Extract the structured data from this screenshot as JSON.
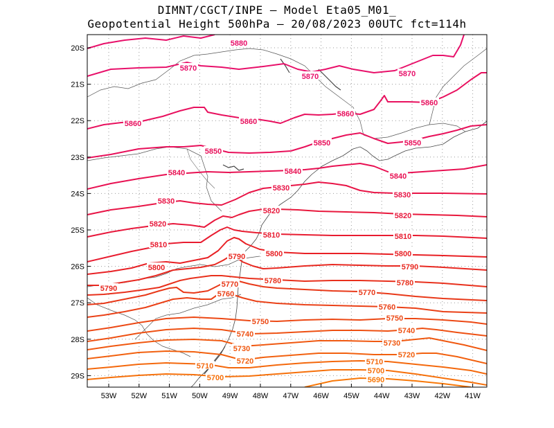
{
  "header": {
    "line1": "DIMNT/CGCT/INPE –  Model Eta05_M01_",
    "line2": "Geopotential Height 500hPa –  20/08/2023 00UTC fct=114h"
  },
  "axes": {
    "lat_labels": [
      "20S",
      "21S",
      "22S",
      "23S",
      "24S",
      "25S",
      "26S",
      "27S",
      "28S",
      "29S"
    ],
    "lon_labels": [
      "53W",
      "52W",
      "51W",
      "50W",
      "49W",
      "48W",
      "47W",
      "46W",
      "45W",
      "44W",
      "43W",
      "42W",
      "41W"
    ]
  },
  "contours": [
    {
      "value": 5880,
      "color": "#e8106a",
      "labels": [
        "5880"
      ]
    },
    {
      "value": 5870,
      "color": "#e8106a",
      "labels": [
        "5870",
        "5870",
        "5870"
      ]
    },
    {
      "value": 5860,
      "color": "#e8105e",
      "labels": [
        "5860",
        "5860",
        "5860",
        "5860"
      ]
    },
    {
      "value": 5850,
      "color": "#e8105a",
      "labels": [
        "5850",
        "5850",
        "5850"
      ]
    },
    {
      "value": 5840,
      "color": "#e81052",
      "labels": [
        "5840",
        "5840",
        "5840"
      ]
    },
    {
      "value": 5830,
      "color": "#e81446",
      "labels": [
        "5830",
        "5830",
        "5830"
      ]
    },
    {
      "value": 5820,
      "color": "#e8183c",
      "labels": [
        "5820",
        "5820",
        "5820"
      ]
    },
    {
      "value": 5810,
      "color": "#e81c30",
      "labels": [
        "5810",
        "5810",
        "5810"
      ]
    },
    {
      "value": 5800,
      "color": "#e82024",
      "labels": [
        "5800",
        "5800",
        "5800"
      ]
    },
    {
      "value": 5790,
      "color": "#e82820",
      "labels": [
        "5790",
        "5790",
        "5790"
      ]
    },
    {
      "value": 5780,
      "color": "#e8301c",
      "labels": [
        "5780",
        "5780"
      ]
    },
    {
      "value": 5770,
      "color": "#e83818",
      "labels": [
        "5770",
        "5770"
      ]
    },
    {
      "value": 5760,
      "color": "#ea4016",
      "labels": [
        "5760",
        "5760"
      ]
    },
    {
      "value": 5750,
      "color": "#ec4814",
      "labels": [
        "5750",
        "5750"
      ]
    },
    {
      "value": 5740,
      "color": "#ee5012",
      "labels": [
        "5740",
        "5740"
      ]
    },
    {
      "value": 5730,
      "color": "#f05810",
      "labels": [
        "5730",
        "5730"
      ]
    },
    {
      "value": 5720,
      "color": "#f2600e",
      "labels": [
        "5720",
        "5720"
      ]
    },
    {
      "value": 5710,
      "color": "#f4680c",
      "labels": [
        "5710",
        "5710"
      ]
    },
    {
      "value": 5700,
      "color": "#f6700a",
      "labels": [
        "5700",
        "5700"
      ]
    },
    {
      "value": 5690,
      "color": "#f87808",
      "labels": [
        "5690"
      ]
    }
  ]
}
